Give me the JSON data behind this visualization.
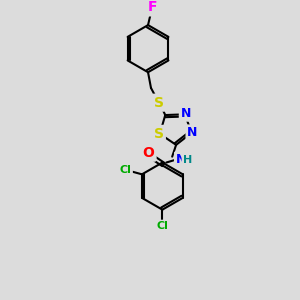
{
  "background_color": "#dcdcdc",
  "bond_color": "#000000",
  "atom_colors": {
    "F": "#ff00ff",
    "S": "#cccc00",
    "N": "#0000ff",
    "O": "#ff0000",
    "Cl": "#00aa00",
    "H": "#008888",
    "C": "#000000"
  },
  "font_size_atom": 8,
  "figsize": [
    3.0,
    3.0
  ],
  "dpi": 100
}
